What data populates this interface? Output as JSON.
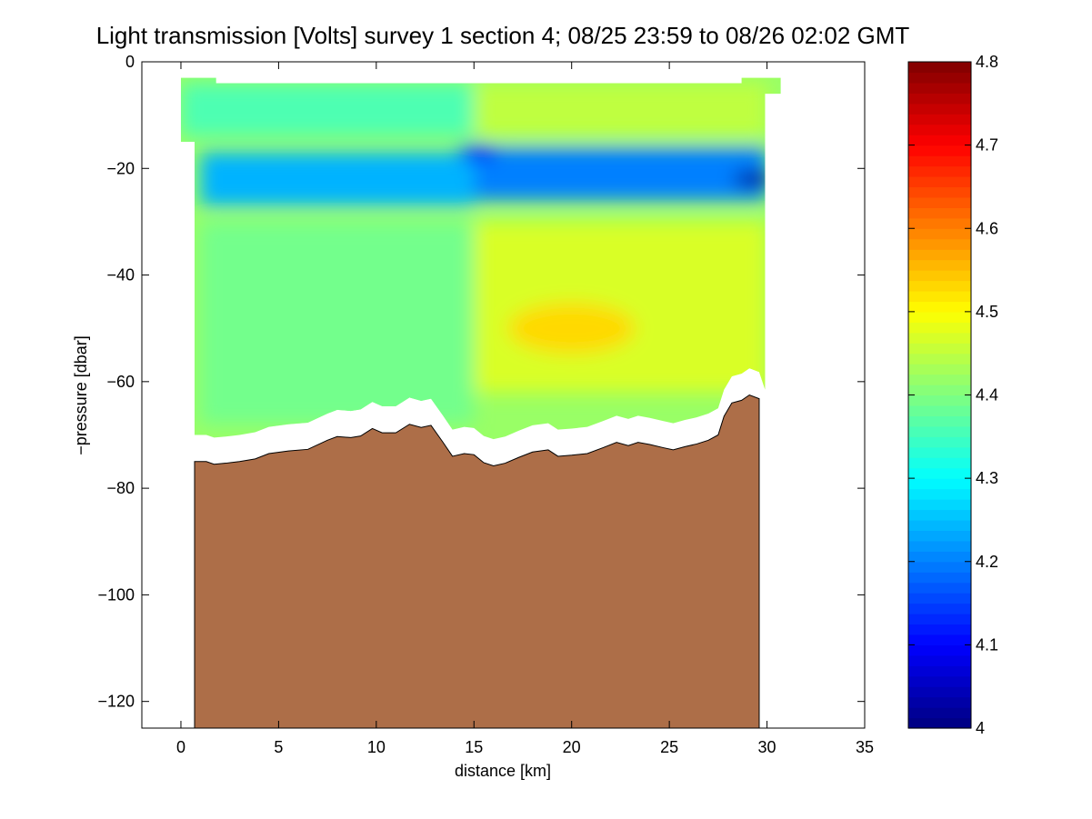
{
  "chart_data": {
    "type": "heatmap",
    "title": "Light transmission [Volts] survey 1 section 4; 08/25 23:59 to 08/26 02:02 GMT",
    "xlabel": "distance [km]",
    "ylabel": "−pressure [dbar]",
    "xlim": [
      -2,
      35
    ],
    "ylim": [
      -125,
      0
    ],
    "xticks": [
      0,
      5,
      10,
      15,
      20,
      25,
      30,
      35
    ],
    "xtick_labels": [
      "0",
      "5",
      "10",
      "15",
      "20",
      "25",
      "30",
      "35"
    ],
    "yticks": [
      0,
      -20,
      -40,
      -60,
      -80,
      -100,
      -120
    ],
    "ytick_labels": [
      "0",
      "−20",
      "−40",
      "−60",
      "−80",
      "−100",
      "−120"
    ],
    "colorbar": {
      "colormap": "jet",
      "range": [
        4.0,
        4.8
      ],
      "ticks": [
        4.0,
        4.1,
        4.2,
        4.3,
        4.4,
        4.5,
        4.6,
        4.7,
        4.8
      ],
      "tick_labels": [
        "4",
        "4.1",
        "4.2",
        "4.3",
        "4.4",
        "4.5",
        "4.6",
        "4.7",
        "4.8"
      ]
    },
    "grid": false,
    "seafloor_color": "#ad6e48",
    "background_field_value": 4.42,
    "field_features": [
      {
        "region": "left upper water",
        "x_range": [
          0,
          15
        ],
        "depth_range": [
          -4,
          -14
        ],
        "value": 4.36
      },
      {
        "region": "right upper water",
        "x_range": [
          15,
          30
        ],
        "depth_range": [
          -4,
          -14
        ],
        "value": 4.45
      },
      {
        "region": "blue band",
        "x_range": [
          1,
          15
        ],
        "depth_range": [
          -17,
          -27
        ],
        "value": 4.24
      },
      {
        "region": "blue band",
        "x_range": [
          15,
          30
        ],
        "depth_range": [
          -16,
          -26
        ],
        "value": 4.2
      },
      {
        "region": "small blue patch",
        "x": 15.2,
        "depth": -17,
        "value": 4.12
      },
      {
        "region": "dark blue core",
        "x": 29.3,
        "depth": -22,
        "value": 4.02
      },
      {
        "region": "left mid water",
        "x_range": [
          1,
          15
        ],
        "depth_range": [
          -30,
          -68
        ],
        "value": 4.39
      },
      {
        "region": "right mid water",
        "x_range": [
          15,
          30
        ],
        "depth_range": [
          -30,
          -62
        ],
        "value": 4.47
      },
      {
        "region": "yellow core",
        "x": 20,
        "depth": -50,
        "value": 4.53
      }
    ],
    "data_start_depth": [
      {
        "x": 0.0,
        "y": -3
      },
      {
        "x": 1.8,
        "y": -4
      },
      {
        "x": 28.7,
        "y": -3
      },
      {
        "x": 30.7,
        "y": -6
      }
    ],
    "seafloor": [
      {
        "x": 0.7,
        "y": -75
      },
      {
        "x": 1.3,
        "y": -75
      },
      {
        "x": 1.7,
        "y": -75.5
      },
      {
        "x": 2.3,
        "y": -75.3
      },
      {
        "x": 3.0,
        "y": -75
      },
      {
        "x": 3.8,
        "y": -74.5
      },
      {
        "x": 4.5,
        "y": -73.5
      },
      {
        "x": 5.5,
        "y": -73
      },
      {
        "x": 6.5,
        "y": -72.7
      },
      {
        "x": 7.5,
        "y": -71
      },
      {
        "x": 8.0,
        "y": -70.3
      },
      {
        "x": 8.7,
        "y": -70.5
      },
      {
        "x": 9.2,
        "y": -70.2
      },
      {
        "x": 9.8,
        "y": -68.8
      },
      {
        "x": 10.3,
        "y": -69.6
      },
      {
        "x": 11.0,
        "y": -69.6
      },
      {
        "x": 11.7,
        "y": -68
      },
      {
        "x": 12.3,
        "y": -68.6
      },
      {
        "x": 12.8,
        "y": -68.2
      },
      {
        "x": 13.4,
        "y": -71.3
      },
      {
        "x": 13.9,
        "y": -74
      },
      {
        "x": 14.5,
        "y": -73.5
      },
      {
        "x": 15.0,
        "y": -73.7
      },
      {
        "x": 15.5,
        "y": -75.2
      },
      {
        "x": 16.0,
        "y": -75.8
      },
      {
        "x": 16.6,
        "y": -75.3
      },
      {
        "x": 17.3,
        "y": -74.2
      },
      {
        "x": 18.0,
        "y": -73.2
      },
      {
        "x": 18.8,
        "y": -72.8
      },
      {
        "x": 19.3,
        "y": -74
      },
      {
        "x": 20.0,
        "y": -73.8
      },
      {
        "x": 20.8,
        "y": -73.5
      },
      {
        "x": 21.6,
        "y": -72.4
      },
      {
        "x": 22.3,
        "y": -71.4
      },
      {
        "x": 22.9,
        "y": -72
      },
      {
        "x": 23.4,
        "y": -71.4
      },
      {
        "x": 24.0,
        "y": -71.8
      },
      {
        "x": 24.7,
        "y": -72.4
      },
      {
        "x": 25.2,
        "y": -72.8
      },
      {
        "x": 25.8,
        "y": -72.2
      },
      {
        "x": 26.4,
        "y": -71.7
      },
      {
        "x": 27.0,
        "y": -71
      },
      {
        "x": 27.5,
        "y": -70
      },
      {
        "x": 27.8,
        "y": -66.5
      },
      {
        "x": 28.2,
        "y": -64
      },
      {
        "x": 28.7,
        "y": -63.5
      },
      {
        "x": 29.1,
        "y": -62.5
      },
      {
        "x": 29.6,
        "y": -63.2
      }
    ]
  }
}
